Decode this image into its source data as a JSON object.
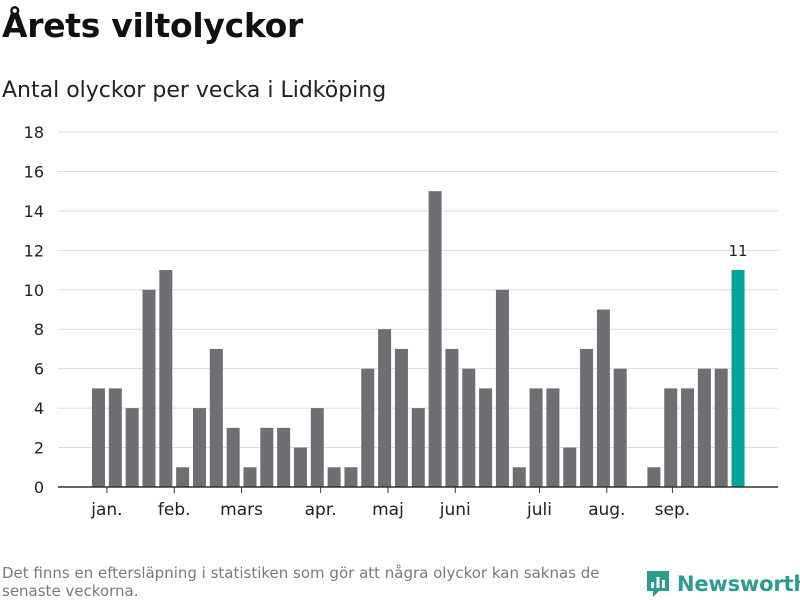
{
  "header": {
    "title": "Årets viltolyckor",
    "subtitle": "Antal olyckor per vecka i Lidköping"
  },
  "footer": {
    "note": "Det finns en eftersläpning i statistiken som gör att några olyckor kan saknas de senaste veckorna.",
    "brand": "Newsworthy"
  },
  "colors": {
    "bar": "#6f6e73",
    "highlight": "#00a49a",
    "grid": "#dcdcdc",
    "axis": "#333333",
    "brand": "#2a9d8f"
  },
  "chart_data": {
    "type": "bar",
    "ylim": [
      0,
      18
    ],
    "yticks": [
      0,
      2,
      4,
      6,
      8,
      10,
      12,
      14,
      16,
      18
    ],
    "grid": true,
    "weeks": [
      1,
      2,
      3,
      4,
      5,
      6,
      7,
      8,
      9,
      10,
      11,
      12,
      13,
      14,
      15,
      16,
      17,
      18,
      19,
      20,
      21,
      22,
      23,
      24,
      25,
      26,
      27,
      28,
      29,
      30,
      31,
      32,
      33,
      34,
      35,
      36,
      37,
      38,
      39
    ],
    "values": [
      5,
      5,
      4,
      10,
      11,
      1,
      4,
      7,
      3,
      1,
      3,
      3,
      2,
      4,
      1,
      1,
      6,
      8,
      7,
      4,
      15,
      7,
      6,
      5,
      10,
      1,
      5,
      5,
      2,
      7,
      9,
      6,
      0,
      1,
      5,
      5,
      6,
      6,
      11
    ],
    "highlight_index": 38,
    "data_labels": [
      {
        "index": 38,
        "text": "11"
      }
    ],
    "month_labels": [
      {
        "label": "jan.",
        "week": 1.5
      },
      {
        "label": "feb.",
        "week": 5.5
      },
      {
        "label": "mars",
        "week": 9.5
      },
      {
        "label": "apr.",
        "week": 14.2
      },
      {
        "label": "maj",
        "week": 18.2
      },
      {
        "label": "juni",
        "week": 22.2
      },
      {
        "label": "juli",
        "week": 27.2
      },
      {
        "label": "aug.",
        "week": 31.2
      },
      {
        "label": "sep.",
        "week": 35.1
      }
    ]
  }
}
